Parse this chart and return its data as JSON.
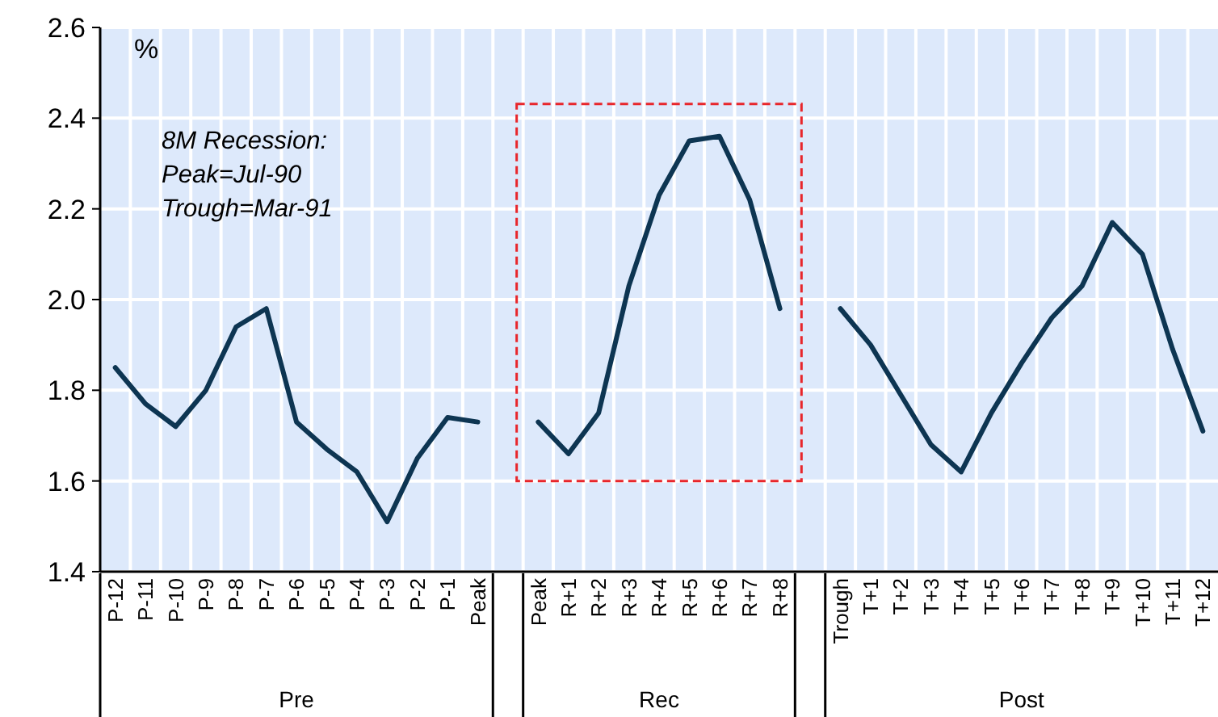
{
  "chart_data": {
    "type": "line",
    "ylabel": "%",
    "categories": [
      "P-12",
      "P-11",
      "P-10",
      "P-9",
      "P-8",
      "P-7",
      "P-6",
      "P-5",
      "P-4",
      "P-3",
      "P-2",
      "P-1",
      "Peak",
      null,
      "Peak",
      "R+1",
      "R+2",
      "R+3",
      "R+4",
      "R+5",
      "R+6",
      "R+7",
      "R+8",
      null,
      "Trough",
      "T+1",
      "T+2",
      "T+3",
      "T+4",
      "T+5",
      "T+6",
      "T+7",
      "T+8",
      "T+9",
      "T+10",
      "T+11",
      "T+12"
    ],
    "series": [
      {
        "color": "#0d3552",
        "values": [
          1.85,
          1.77,
          1.72,
          1.8,
          1.94,
          1.98,
          1.73,
          1.67,
          1.62,
          1.51,
          1.65,
          1.74,
          1.73,
          null,
          1.73,
          1.66,
          1.75,
          2.03,
          2.23,
          2.35,
          2.36,
          2.22,
          1.98,
          null,
          1.98,
          1.9,
          1.79,
          1.68,
          1.62,
          1.75,
          1.86,
          1.96,
          2.03,
          2.17,
          2.1,
          1.89,
          1.71
        ]
      }
    ],
    "ylim": [
      1.4,
      2.6
    ],
    "yticks": [
      {
        "value": 1.4,
        "label": "1.4"
      },
      {
        "value": 1.6,
        "label": "1.6"
      },
      {
        "value": 1.8,
        "label": "1.8"
      },
      {
        "value": 2.0,
        "label": "2.0"
      },
      {
        "value": 2.2,
        "label": "2.2"
      },
      {
        "value": 2.4,
        "label": "2.4"
      },
      {
        "value": 2.6,
        "label": "2.6"
      }
    ],
    "grid": true,
    "marker": "none",
    "line_style": "solid",
    "annotations": [
      "8M Recession:\nPeak=Jul-90\nTrough=Mar-91",
      "Pre",
      "Rec",
      "Post"
    ]
  }
}
